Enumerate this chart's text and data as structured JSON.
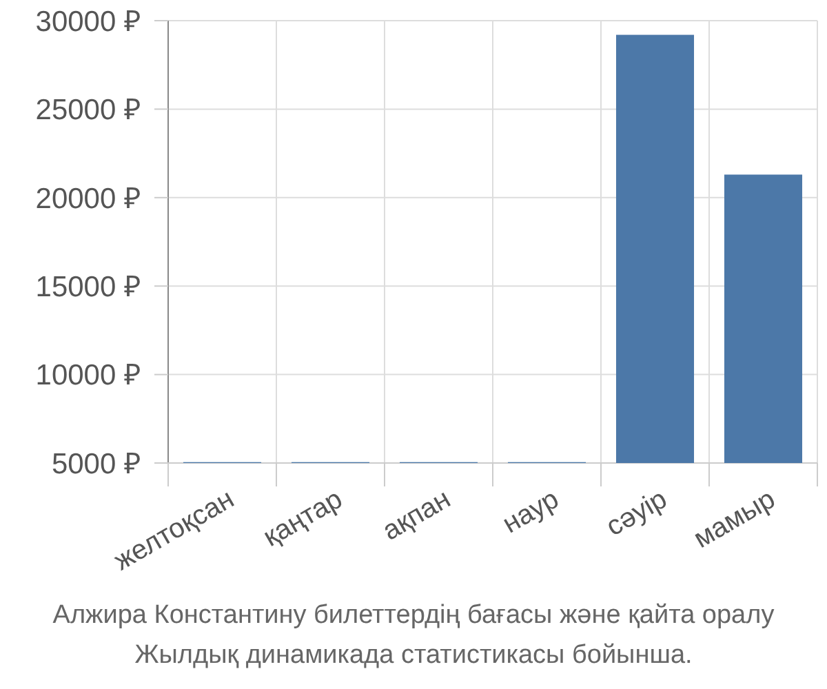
{
  "chart_data": {
    "type": "bar",
    "categories": [
      "желтоқсан",
      "қаңтар",
      "ақпан",
      "наур",
      "сәуір",
      "мамыр"
    ],
    "values": [
      5050,
      5050,
      5050,
      5050,
      29200,
      21300
    ],
    "color": "#4c78a8",
    "ylim": [
      5000,
      30000
    ],
    "yticks": [
      {
        "value": 5000,
        "label": "5000 ₽"
      },
      {
        "value": 10000,
        "label": "10000 ₽"
      },
      {
        "value": 15000,
        "label": "15000 ₽"
      },
      {
        "value": 20000,
        "label": "20000 ₽"
      },
      {
        "value": 25000,
        "label": "25000 ₽"
      },
      {
        "value": 30000,
        "label": "30000 ₽"
      }
    ],
    "grid": true,
    "annotations": [
      "Алжира Константину билеттердің бағасы және қайта оралу",
      "Жылдық динамикада статистикасы бойынша."
    ]
  }
}
